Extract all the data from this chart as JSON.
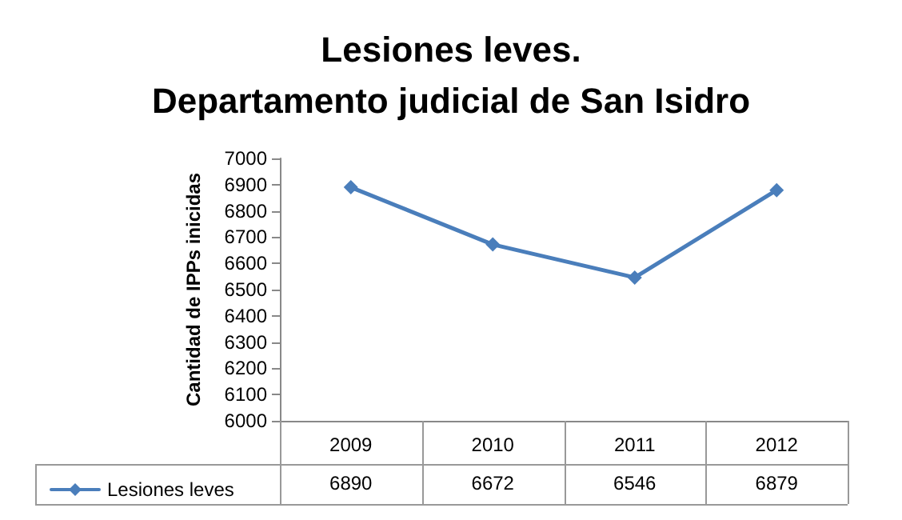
{
  "chart_data": {
    "type": "line",
    "title": "Lesiones leves.\nDepartamento judicial de San Isidro",
    "ylabel": "Cantidad de IPPs inicidas",
    "categories": [
      "2009",
      "2010",
      "2011",
      "2012"
    ],
    "series": [
      {
        "name": "Lesiones leves",
        "color": "#4a7ebb",
        "values": [
          6890,
          6672,
          6546,
          6879
        ]
      }
    ],
    "ylim": [
      6000,
      7000
    ],
    "yticks": [
      6000,
      6100,
      6200,
      6300,
      6400,
      6500,
      6600,
      6700,
      6800,
      6900,
      7000
    ],
    "grid": false,
    "legend": "bottom left",
    "marker": "diamond",
    "line_style": "solid",
    "data_labels": true
  }
}
